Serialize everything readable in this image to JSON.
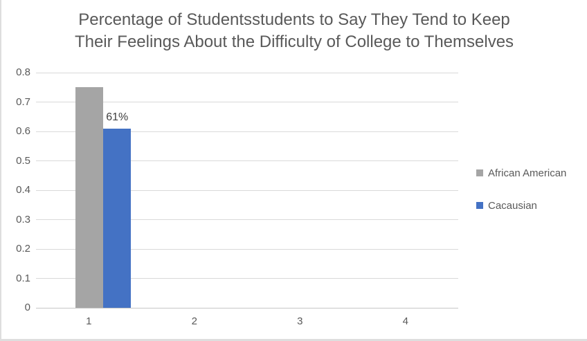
{
  "chart_data": {
    "type": "bar",
    "title": "Percentage of Studentsstudents to Say They Tend to Keep Their Feelings About the Difficulty of College to Themselves",
    "title_lines": [
      "Percentage of Studentsstudents to Say They Tend to Keep",
      "Their Feelings About the Difficulty of College to Themselves"
    ],
    "categories": [
      "1",
      "2",
      "3",
      "4"
    ],
    "series": [
      {
        "name": "African American",
        "color": "#a5a5a5",
        "values": [
          0.75,
          null,
          null,
          null
        ],
        "data_labels": [
          null,
          null,
          null,
          null
        ]
      },
      {
        "name": "Cacausian",
        "color": "#4472c4",
        "values": [
          0.61,
          null,
          null,
          null
        ],
        "data_labels": [
          "61%",
          null,
          null,
          null
        ]
      }
    ],
    "xlabel": "",
    "ylabel": "",
    "ylim": [
      0,
      0.8
    ],
    "ytick_step": 0.1,
    "ytick_labels": [
      "0",
      "0.1",
      "0.2",
      "0.3",
      "0.4",
      "0.5",
      "0.6",
      "0.7",
      "0.8"
    ],
    "grid": true,
    "legend_position": "right"
  },
  "colors": {
    "gridline": "#d9d9d9",
    "axis_line": "#c6c6c6",
    "title_text": "#595959",
    "tick_text": "#595959",
    "data_label_text": "#404040",
    "legend_text": "#595959",
    "series_gray": "#a5a5a5",
    "series_blue": "#4472c4",
    "chart_border": "#dedede"
  }
}
